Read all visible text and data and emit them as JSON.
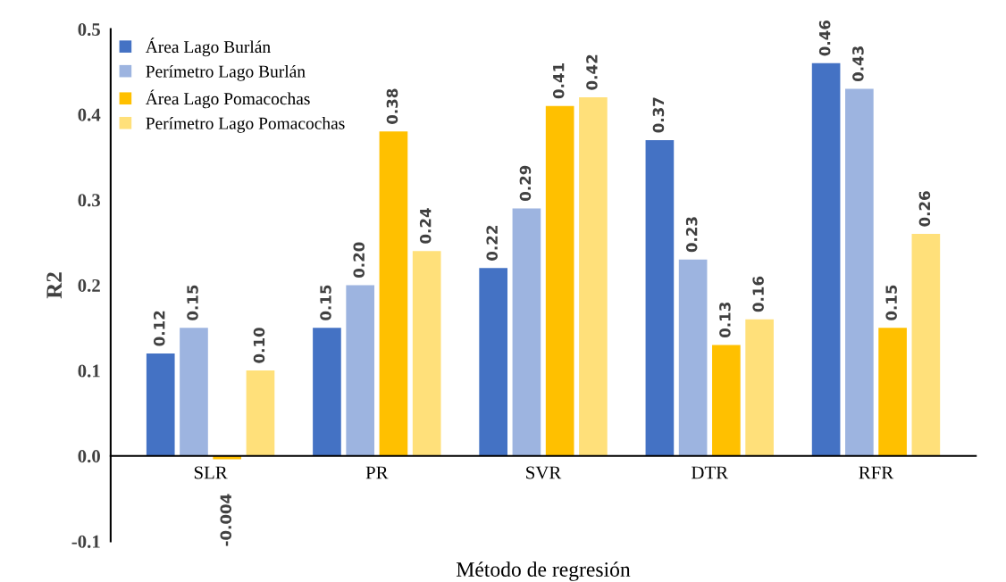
{
  "chart_data": {
    "type": "bar",
    "xlabel": "Método de regresión",
    "ylabel": "R2",
    "categories": [
      "SLR",
      "PR",
      "SVR",
      "DTR",
      "RFR"
    ],
    "series": [
      {
        "name": "Área Lago Burlán",
        "color": "#4472c4",
        "values": [
          0.12,
          0.15,
          0.22,
          0.37,
          0.46
        ],
        "value_labels": [
          "0.12",
          "0.15",
          "0.22",
          "0.37",
          "0.46"
        ]
      },
      {
        "name": "Perímetro Lago Burlán",
        "color": "#9db4e0",
        "values": [
          0.15,
          0.2,
          0.29,
          0.23,
          0.43
        ],
        "value_labels": [
          "0.15",
          "0.20",
          "0.29",
          "0.23",
          "0.43"
        ]
      },
      {
        "name": "Área Lago Pomacochas",
        "color": "#ffc000",
        "values": [
          -0.004,
          0.38,
          0.41,
          0.13,
          0.15
        ],
        "value_labels": [
          "-0.004",
          "0.38",
          "0.41",
          "0.13",
          "0.15"
        ]
      },
      {
        "name": "Perímetro Lago Pomacochas",
        "color": "#ffe07a",
        "values": [
          0.1,
          0.24,
          0.42,
          0.16,
          0.26
        ],
        "value_labels": [
          "0.10",
          "0.24",
          "0.42",
          "0.16",
          "0.26"
        ]
      }
    ],
    "ylim": [
      -0.1,
      0.5
    ],
    "yticks": [
      -0.1,
      {
        "value": 0,
        "label": "0.0"
      },
      0.1,
      0.2,
      0.3,
      0.4,
      0.5
    ],
    "grid": false,
    "legend": "top left"
  }
}
